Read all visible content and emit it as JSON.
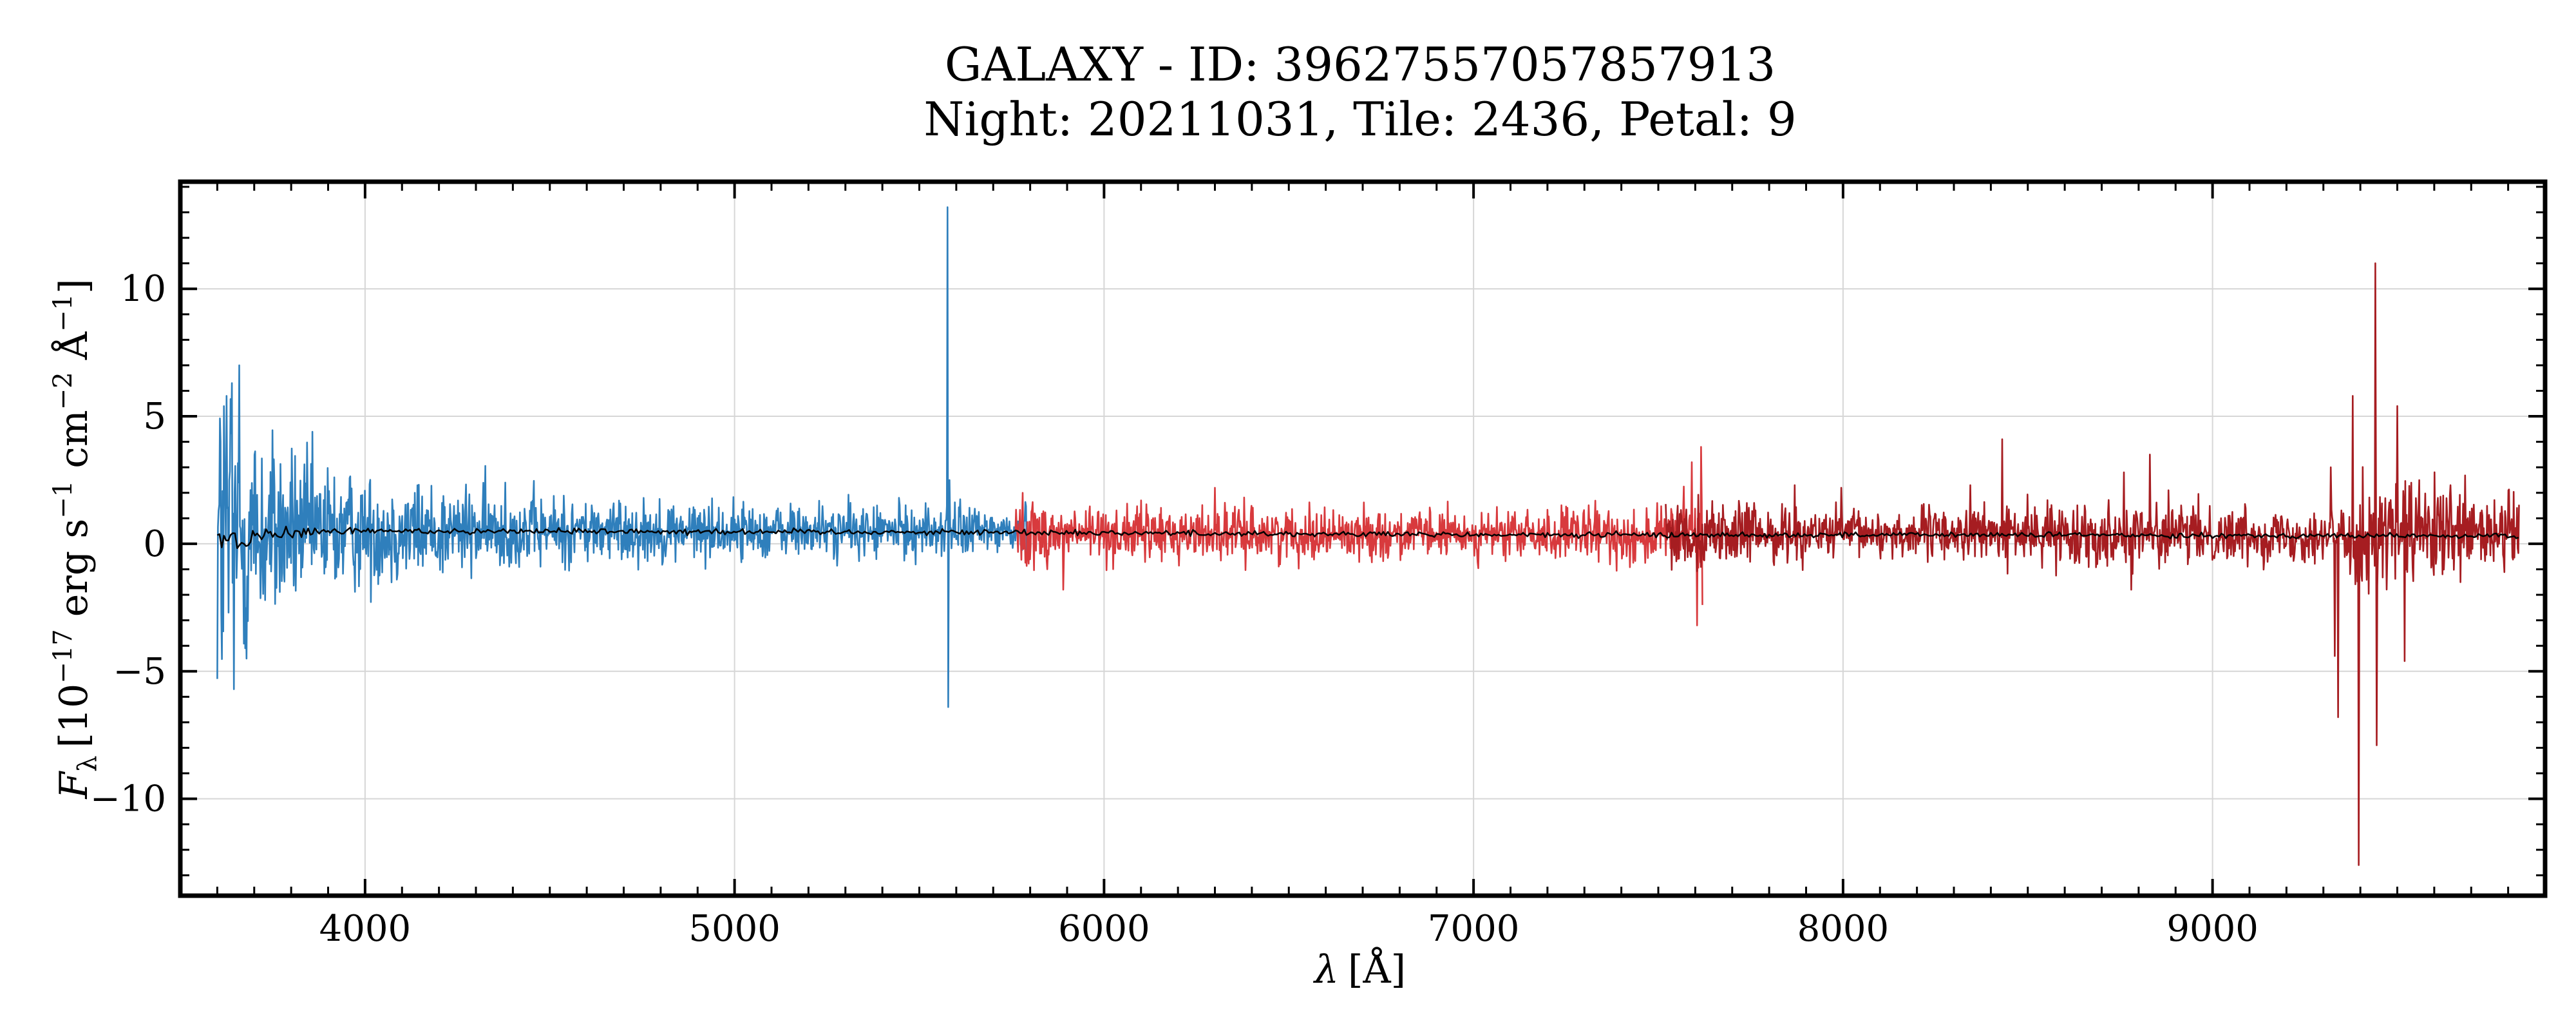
{
  "chart_data": {
    "type": "line",
    "title": "GALAXY - ID: 39627557057857913",
    "subtitle": "Night: 20211031, Tile: 2436, Petal: 9",
    "xlabel_symbol": "λ",
    "xlabel_unit": "[Å]",
    "ylabel_symbol": "F",
    "ylabel_symbol_sub": "λ",
    "ylabel_unit_prefix": "[10",
    "ylabel_unit_exp": "−17",
    "ylabel_unit_rest": " erg s",
    "ylabel_unit_s_exp": "−1",
    "ylabel_unit_cm": " cm",
    "ylabel_unit_cm_exp": "−2",
    "ylabel_unit_A": " Å",
    "ylabel_unit_A_exp": "−1",
    "ylabel_unit_close": "]",
    "xlim": [
      3500,
      9900
    ],
    "ylim": [
      -13.8,
      14.2
    ],
    "xticks": [
      4000,
      5000,
      6000,
      7000,
      8000,
      9000
    ],
    "xtick_labels": [
      "4000",
      "5000",
      "6000",
      "7000",
      "8000",
      "9000"
    ],
    "yticks": [
      -10,
      -5,
      0,
      5,
      10
    ],
    "ytick_labels": [
      "−10",
      "−5",
      "0",
      "5",
      "10"
    ],
    "grid": true,
    "colors": {
      "b_arm": "#2f7fbc",
      "r_arm": "#d83a3d",
      "z_arm": "#a61d21",
      "model": "#000000",
      "grid": "#d6d6d6",
      "frame": "#000000"
    },
    "series": [
      {
        "key": "b",
        "range": [
          3600,
          5800
        ],
        "baseline": [
          [
            3600,
            0.2
          ],
          [
            3700,
            0.4
          ],
          [
            3900,
            0.5
          ],
          [
            4500,
            0.5
          ],
          [
            5800,
            0.5
          ]
        ],
        "noise": [
          [
            3600,
            4.0
          ],
          [
            3700,
            2.2
          ],
          [
            3800,
            1.6
          ],
          [
            4000,
            1.1
          ],
          [
            4500,
            0.7
          ],
          [
            5000,
            0.55
          ],
          [
            5800,
            0.5
          ]
        ],
        "features": [
          [
            3590,
            8.0
          ],
          [
            3600,
            -5.3
          ],
          [
            3625,
            5.8
          ],
          [
            3640,
            6.3
          ],
          [
            3645,
            -5.7
          ],
          [
            3660,
            7.0
          ],
          [
            3680,
            -4.5
          ],
          [
            4380,
            2.4
          ],
          [
            4390,
            -0.9
          ],
          [
            5577,
            13.2
          ],
          [
            5579,
            -6.4
          ],
          [
            5581,
            2.5
          ]
        ]
      },
      {
        "key": "r",
        "range": [
          5760,
          7620
        ],
        "baseline": [
          [
            5760,
            0.4
          ],
          [
            6500,
            0.4
          ],
          [
            7620,
            0.3
          ]
        ],
        "noise": [
          [
            5760,
            0.7
          ],
          [
            6000,
            0.55
          ],
          [
            7000,
            0.45
          ],
          [
            7500,
            0.6
          ],
          [
            7620,
            0.8
          ]
        ],
        "features": [
          [
            5780,
            2.0
          ],
          [
            5890,
            -1.8
          ],
          [
            6300,
            2.2
          ],
          [
            7590,
            3.2
          ],
          [
            7605,
            -3.2
          ],
          [
            7615,
            3.8
          ],
          [
            7620,
            -2.4
          ]
        ]
      },
      {
        "key": "z",
        "range": [
          7520,
          9830
        ],
        "baseline": [
          [
            7520,
            0.4
          ],
          [
            8500,
            0.4
          ],
          [
            9830,
            0.3
          ]
        ],
        "noise": [
          [
            7520,
            0.7
          ],
          [
            8000,
            0.45
          ],
          [
            8700,
            0.6
          ],
          [
            9300,
            0.5
          ],
          [
            9400,
            1.1
          ],
          [
            9830,
            0.8
          ]
        ],
        "features": [
          [
            7870,
            2.3
          ],
          [
            7995,
            2.2
          ],
          [
            8345,
            2.3
          ],
          [
            8430,
            4.1
          ],
          [
            8760,
            2.8
          ],
          [
            8780,
            -1.8
          ],
          [
            8830,
            3.5
          ],
          [
            8880,
            2.1
          ],
          [
            9320,
            3.0
          ],
          [
            9330,
            -4.4
          ],
          [
            9340,
            -6.8
          ],
          [
            9380,
            5.8
          ],
          [
            9395,
            -12.6
          ],
          [
            9440,
            11.0
          ],
          [
            9445,
            -7.9
          ],
          [
            9500,
            5.4
          ],
          [
            9520,
            -4.6
          ],
          [
            9560,
            2.5
          ],
          [
            9800,
            2.1
          ]
        ]
      },
      {
        "key": "model",
        "range": [
          3600,
          9830
        ],
        "baseline": [
          [
            3600,
            0.3
          ],
          [
            3650,
            0.1
          ],
          [
            3700,
            0.3
          ],
          [
            3900,
            0.5
          ],
          [
            4500,
            0.5
          ],
          [
            5800,
            0.45
          ],
          [
            7000,
            0.35
          ],
          [
            8500,
            0.35
          ],
          [
            9830,
            0.3
          ]
        ],
        "noise": [
          [
            3600,
            0.5
          ],
          [
            3700,
            0.25
          ],
          [
            4000,
            0.1
          ],
          [
            9830,
            0.08
          ]
        ],
        "features": []
      }
    ]
  }
}
